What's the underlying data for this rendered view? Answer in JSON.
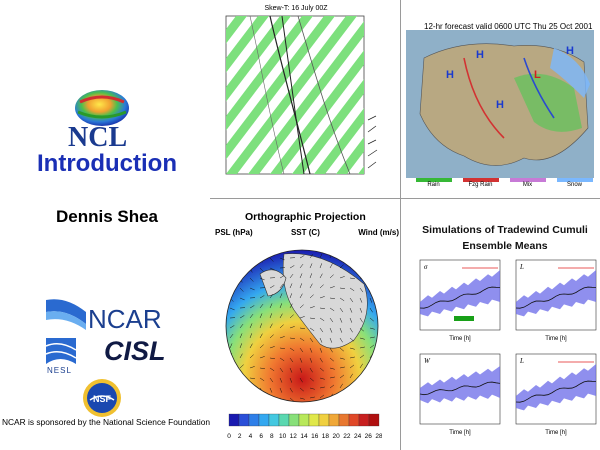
{
  "left": {
    "ncl_logo_text": "NCL",
    "title": "Introduction",
    "author": "Dennis Shea",
    "ncar_text": "NCAR",
    "nesl_text": "NESL",
    "cisl_text": "CISL",
    "nsf_text": "NSF",
    "sponsor_text": "NCAR is sponsored by the National Science Foundation"
  },
  "skewt": {
    "title": "Skew-T: 16 July 00Z",
    "stripe_color": "#7de07d"
  },
  "forecast": {
    "title": "12-hr forecast valid 0600 UTC Thu 25 Oct 2001",
    "legend": [
      "Rain",
      "Fzg Rain",
      "Mix",
      "Snow"
    ],
    "legend_colors": [
      "#36b836",
      "#d23232",
      "#c77ad6",
      "#7ab8ff"
    ]
  },
  "ortho": {
    "title": "Orthographic Projection",
    "labels": [
      "PSL (hPa)",
      "SST (C)",
      "Wind (m/s)"
    ],
    "colorbar_ticks": [
      "0",
      "2",
      "4",
      "6",
      "8",
      "10",
      "12",
      "14",
      "16",
      "18",
      "20",
      "22",
      "24",
      "26",
      "28"
    ],
    "colorbar_colors": [
      "#1a1ab0",
      "#2a4fd8",
      "#2f7fe8",
      "#34a8f0",
      "#44c8e0",
      "#5ad8b0",
      "#88e07a",
      "#b8e85a",
      "#e0e84a",
      "#f0d040",
      "#f0a838",
      "#e87830",
      "#e04828",
      "#c82020",
      "#b01010"
    ]
  },
  "tradewind": {
    "title_line1": "Simulations of Tradewind Cumuli",
    "title_line2": "Ensemble Means",
    "x_label": "Time [h]",
    "panel_labels": [
      "σ",
      "L",
      "W",
      "L"
    ]
  }
}
